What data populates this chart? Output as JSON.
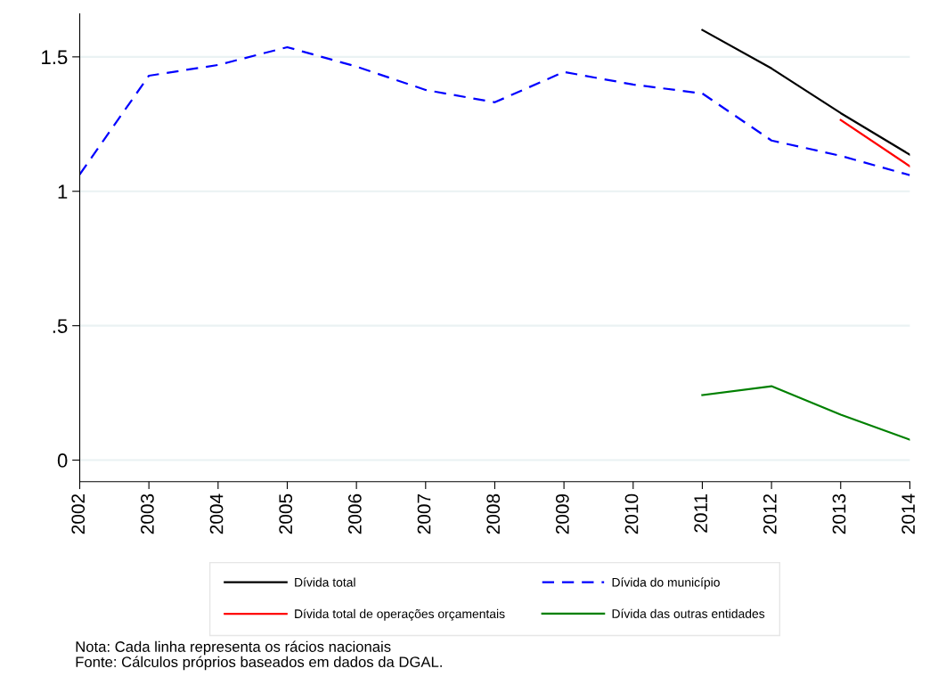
{
  "chart_data": {
    "type": "line",
    "categories": [
      "2002",
      "2003",
      "2004",
      "2005",
      "2006",
      "2007",
      "2008",
      "2009",
      "2010",
      "2011",
      "2012",
      "2013",
      "2014"
    ],
    "series": [
      {
        "name": "Dívida total",
        "color": "#000000",
        "line_style": "solid",
        "values": [
          null,
          null,
          null,
          null,
          null,
          null,
          null,
          null,
          null,
          1.6,
          1.457,
          1.291,
          1.136
        ]
      },
      {
        "name": "Dívida do município",
        "color": "#0000ff",
        "line_style": "dashed",
        "values": [
          1.063,
          1.43,
          1.47,
          1.536,
          1.464,
          1.377,
          1.331,
          1.444,
          1.397,
          1.364,
          1.189,
          1.132,
          1.06
        ]
      },
      {
        "name": "Dívida total de operações orçamentais",
        "color": "#ff0000",
        "line_style": "solid",
        "values": [
          null,
          null,
          null,
          null,
          null,
          null,
          null,
          null,
          null,
          null,
          null,
          1.265,
          1.093
        ]
      },
      {
        "name": "Dívida das outras entidades",
        "color": "#008000",
        "line_style": "solid",
        "values": [
          null,
          null,
          null,
          null,
          null,
          null,
          null,
          null,
          null,
          0.242,
          0.275,
          0.169,
          0.076
        ]
      }
    ],
    "ylim": [
      -0.08,
      1.66
    ],
    "yticks": [
      0,
      {
        "value": 0.5,
        "label": ".5"
      },
      1,
      1.5
    ],
    "grid": "y",
    "legend": "bottom",
    "marker": "none",
    "annotations": [
      "Nota: Cada linha representa os rácios nacionais",
      "Fonte: Cálculos próprios baseados em dados da DGAL."
    ]
  }
}
